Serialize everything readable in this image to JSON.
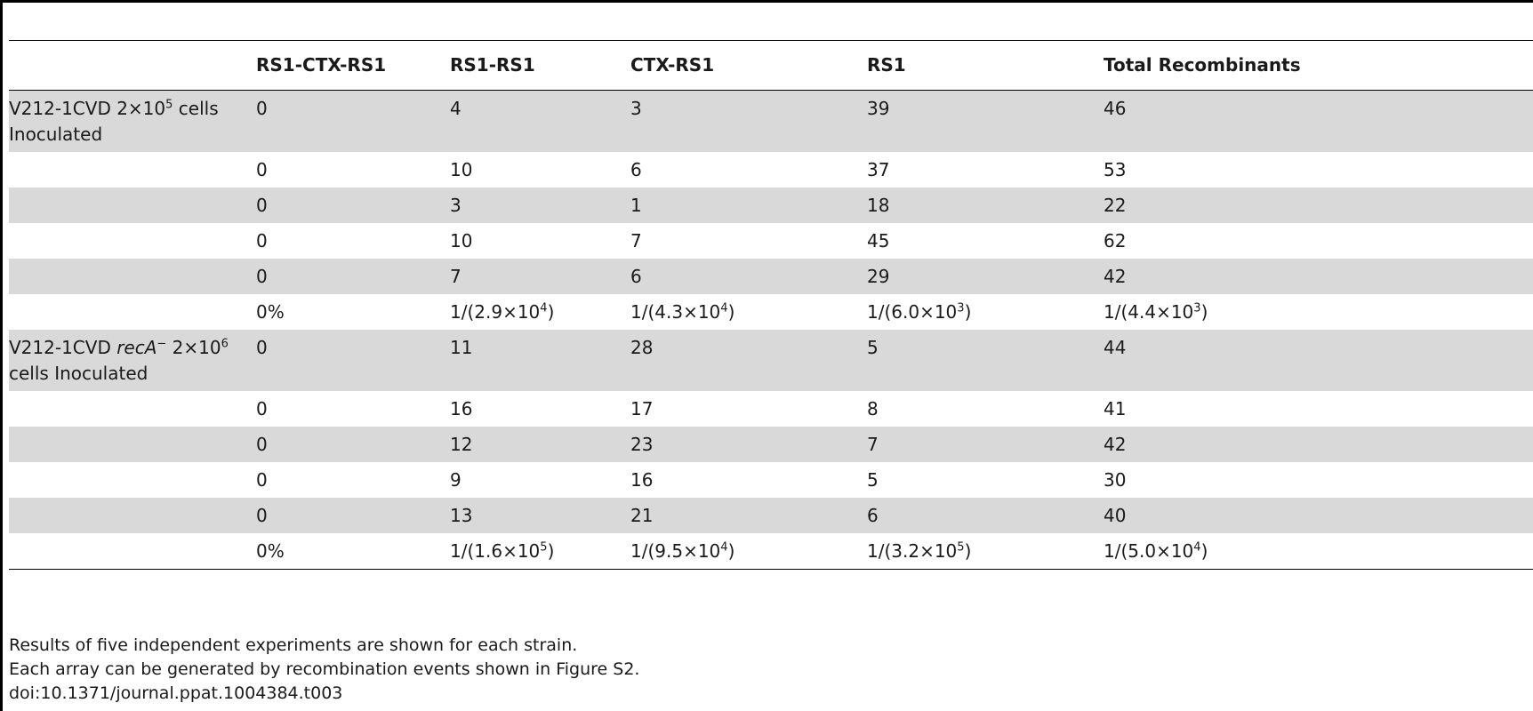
{
  "table": {
    "headers": [
      "",
      "RS1-CTX-RS1",
      "RS1-RS1",
      "CTX-RS1",
      "RS1",
      "Total Recombinants"
    ],
    "group1": {
      "label_prefix": "V212-1CVD 2×10",
      "label_exp": "5",
      "label_suffix": " cells Inoculated",
      "rows": [
        [
          "0",
          "4",
          "3",
          "39",
          "46"
        ],
        [
          "0",
          "10",
          "6",
          "37",
          "53"
        ],
        [
          "0",
          "3",
          "1",
          "18",
          "22"
        ],
        [
          "0",
          "10",
          "7",
          "45",
          "62"
        ],
        [
          "0",
          "7",
          "6",
          "29",
          "42"
        ]
      ],
      "freq": {
        "c1": "0%",
        "c2_base": "1/(2.9×10",
        "c2_exp": "4",
        "c2_end": ")",
        "c3_base": "1/(4.3×10",
        "c3_exp": "4",
        "c3_end": ")",
        "c4_base": "1/(6.0×10",
        "c4_exp": "3",
        "c4_end": ")",
        "c5_base": "1/(4.4×10",
        "c5_exp": "3",
        "c5_end": ")"
      }
    },
    "group2": {
      "label_prefix": "V212-1CVD ",
      "label_italic": "recA",
      "label_minus": "−",
      "label_mid": " 2×10",
      "label_exp": "6",
      "label_suffix": " cells Inoculated",
      "rows": [
        [
          "0",
          "11",
          "28",
          "5",
          "44"
        ],
        [
          "0",
          "16",
          "17",
          "8",
          "41"
        ],
        [
          "0",
          "12",
          "23",
          "7",
          "42"
        ],
        [
          "0",
          "9",
          "16",
          "5",
          "30"
        ],
        [
          "0",
          "13",
          "21",
          "6",
          "40"
        ]
      ],
      "freq": {
        "c1": "0%",
        "c2_base": "1/(1.6×10",
        "c2_exp": "5",
        "c2_end": ")",
        "c3_base": "1/(9.5×10",
        "c3_exp": "4",
        "c3_end": ")",
        "c4_base": "1/(3.2×10",
        "c4_exp": "5",
        "c4_end": ")",
        "c5_base": "1/(5.0×10",
        "c5_exp": "4",
        "c5_end": ")"
      }
    }
  },
  "footnotes": {
    "line1": "Results of five independent experiments are shown for each strain.",
    "line2": "Each array can be generated by recombination events shown in Figure S2.",
    "doi": "doi:10.1371/journal.ppat.1004384.t003"
  }
}
